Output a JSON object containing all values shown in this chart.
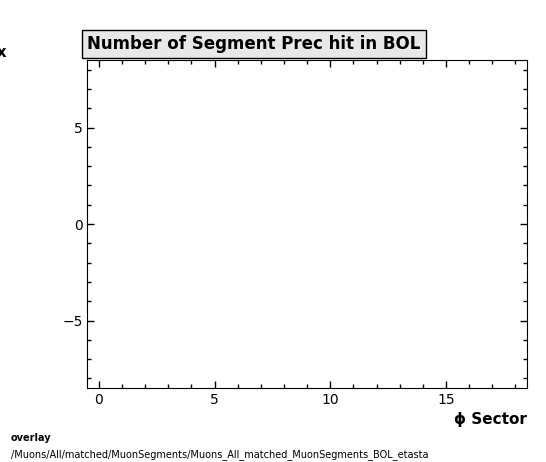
{
  "title": "Number of Segment Prec hit in BOL",
  "xlabel": "ϕ Sector",
  "xlim": [
    -0.5,
    18.5
  ],
  "ylim": [
    -8.5,
    8.5
  ],
  "xticks": [
    0,
    5,
    10,
    15
  ],
  "yticks": [
    -5,
    0,
    5
  ],
  "background_color": "#ffffff",
  "plot_bg_color": "#ffffff",
  "footer_line1": "overlay",
  "footer_line2": "/Muons/All/matched/MuonSegments/Muons_All_matched_MuonSegments_BOL_etasta",
  "title_fontsize": 12,
  "axis_label_fontsize": 11,
  "tick_fontsize": 10,
  "footer_fontsize": 7
}
